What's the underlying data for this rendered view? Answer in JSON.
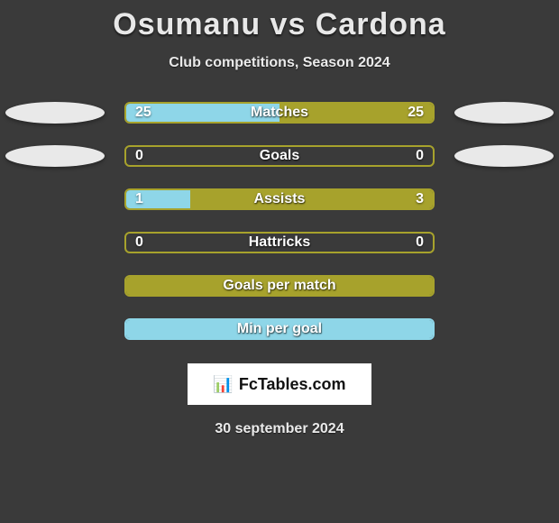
{
  "title": "Osumanu vs Cardona",
  "subtitle": "Club competitions, Season 2024",
  "footer_date": "30 september 2024",
  "brand": {
    "text": "FcTables.com",
    "icon_glyph": "📊"
  },
  "colors": {
    "olive": "#a7a22c",
    "sky": "#8ed6e8",
    "ellipse": "#e9e9e9",
    "background": "#3a3a3a"
  },
  "side_ellipses": [
    {
      "row_index": 0,
      "left": true,
      "right": true
    },
    {
      "row_index": 1,
      "left": true,
      "right": true
    }
  ],
  "stats": [
    {
      "label": "Matches",
      "left_value": "25",
      "right_value": "25",
      "border_color": "#a7a22c",
      "left_fill_color": "#8ed6e8",
      "right_fill_color": "#a7a22c",
      "left_fill_pct": 50,
      "right_fill_pct": 50
    },
    {
      "label": "Goals",
      "left_value": "0",
      "right_value": "0",
      "border_color": "#a7a22c",
      "left_fill_color": null,
      "right_fill_color": null,
      "left_fill_pct": 0,
      "right_fill_pct": 0
    },
    {
      "label": "Assists",
      "left_value": "1",
      "right_value": "3",
      "border_color": "#a7a22c",
      "left_fill_color": "#8ed6e8",
      "right_fill_color": "#a7a22c",
      "left_fill_pct": 21,
      "right_fill_pct": 79
    },
    {
      "label": "Hattricks",
      "left_value": "0",
      "right_value": "0",
      "border_color": "#a7a22c",
      "left_fill_color": null,
      "right_fill_color": null,
      "left_fill_pct": 0,
      "right_fill_pct": 0
    },
    {
      "label": "Goals per match",
      "left_value": "",
      "right_value": "",
      "border_color": "#a7a22c",
      "full_fill_color": "#a7a22c",
      "left_fill_pct": 0,
      "right_fill_pct": 0
    },
    {
      "label": "Min per goal",
      "left_value": "",
      "right_value": "",
      "border_color": "#8ed6e8",
      "full_fill_color": "#8ed6e8",
      "left_fill_pct": 0,
      "right_fill_pct": 0
    }
  ]
}
